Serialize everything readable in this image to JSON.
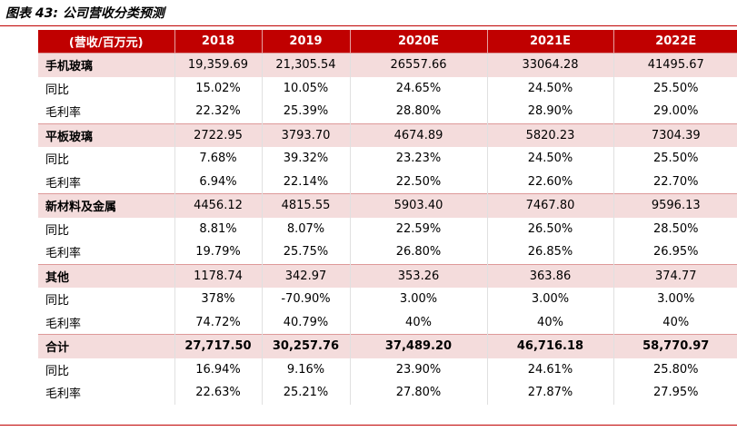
{
  "caption": "图表 43: 公司营收分类预测",
  "table": {
    "headers": [
      "(营收/百万元)",
      "2018",
      "2019",
      "2020E",
      "2021E",
      "2022E"
    ],
    "rows": [
      [
        "手机玻璃",
        "19,359.69",
        "21,305.54",
        "26557.66",
        "33064.28",
        "41495.67"
      ],
      [
        "同比",
        "15.02%",
        "10.05%",
        "24.65%",
        "24.50%",
        "25.50%"
      ],
      [
        "毛利率",
        "22.32%",
        "25.39%",
        "28.80%",
        "28.90%",
        "29.00%"
      ],
      [
        "平板玻璃",
        "2722.95",
        "3793.70",
        "4674.89",
        "5820.23",
        "7304.39"
      ],
      [
        "同比",
        "7.68%",
        "39.32%",
        "23.23%",
        "24.50%",
        "25.50%"
      ],
      [
        "毛利率",
        "6.94%",
        "22.14%",
        "22.50%",
        "22.60%",
        "22.70%"
      ],
      [
        "新材料及金属",
        "4456.12",
        "4815.55",
        "5903.40",
        "7467.80",
        "9596.13"
      ],
      [
        "同比",
        "8.81%",
        "8.07%",
        "22.59%",
        "26.50%",
        "28.50%"
      ],
      [
        "毛利率",
        "19.79%",
        "25.75%",
        "26.80%",
        "26.85%",
        "26.95%"
      ],
      [
        "其他",
        "1178.74",
        "342.97",
        "353.26",
        "363.86",
        "374.77"
      ],
      [
        "同比",
        "378%",
        "-70.90%",
        "3.00%",
        "3.00%",
        "3.00%"
      ],
      [
        "毛利率",
        "74.72%",
        "40.79%",
        "40%",
        "40%",
        "40%"
      ],
      [
        "合计",
        "27,717.50",
        "30,257.76",
        "37,489.20",
        "46,716.18",
        "58,770.97"
      ],
      [
        "同比",
        "16.94%",
        "9.16%",
        "23.90%",
        "24.61%",
        "25.80%"
      ],
      [
        "毛利率",
        "22.63%",
        "25.21%",
        "27.80%",
        "27.87%",
        "27.95%"
      ]
    ]
  },
  "colors": {
    "header_bg": "#c00000",
    "category_bg": "#f4dcdc"
  }
}
